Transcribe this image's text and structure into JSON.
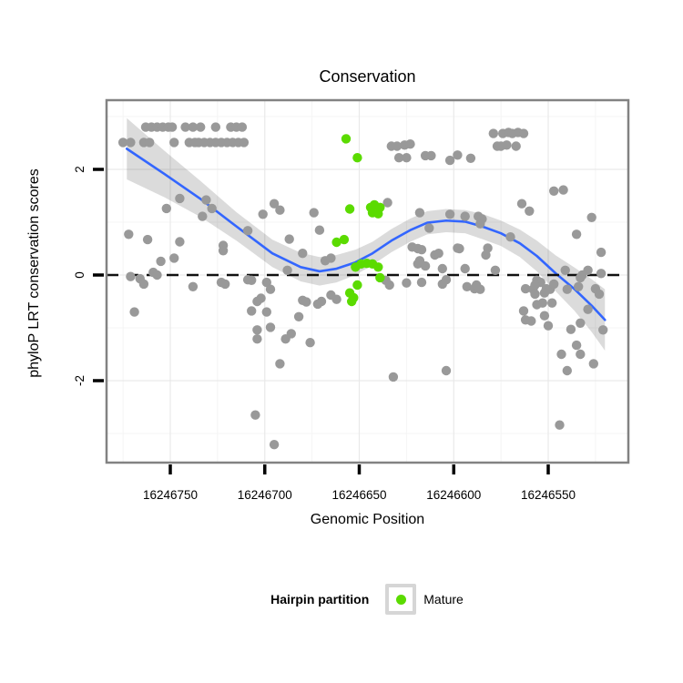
{
  "title": "Conservation",
  "legend": {
    "title": "Hairpin partition",
    "items": [
      {
        "label": "Mature",
        "color": "#5bdb00"
      }
    ]
  },
  "colors": {
    "gray_points": "#999999",
    "mature_points": "#5bdb00",
    "smooth_line": "#3366ff",
    "ci_band": "rgba(0,0,0,0.14)",
    "dashed_line": "#111111",
    "panel_border": "#828282",
    "grid_major": "#e9e9e9",
    "grid_minor": "#f4f4f4",
    "tick": "#000000"
  },
  "chart_data": {
    "type": "scatter",
    "title": "Conservation",
    "xlabel": "Genomic Position",
    "ylabel": "phyloP LRT conservation scores",
    "x_ticks": [
      16246750,
      16246700,
      16246650,
      16246600,
      16246550
    ],
    "y_ticks": [
      2,
      0,
      -2
    ],
    "x_descending": true,
    "xlim": [
      16246784,
      16246508
    ],
    "ylim": [
      -3.5,
      3.3
    ],
    "hline": 0,
    "grid": true,
    "legend_position": "bottom",
    "series": [
      {
        "name": "gray_points",
        "color": "#999999",
        "points": [
          [
            16246763,
            2.8
          ],
          [
            16246760,
            2.8
          ],
          [
            16246757,
            2.8
          ],
          [
            16246754,
            2.8
          ],
          [
            16246751,
            2.8
          ],
          [
            16246749,
            2.8
          ],
          [
            16246742,
            2.8
          ],
          [
            16246738,
            2.8
          ],
          [
            16246734,
            2.8
          ],
          [
            16246726,
            2.8
          ],
          [
            16246718,
            2.8
          ],
          [
            16246715,
            2.8
          ],
          [
            16246712,
            2.8
          ],
          [
            16246775,
            2.51
          ],
          [
            16246771,
            2.51
          ],
          [
            16246764,
            2.51
          ],
          [
            16246761,
            2.51
          ],
          [
            16246748,
            2.51
          ],
          [
            16246740,
            2.51
          ],
          [
            16246737,
            2.51
          ],
          [
            16246735,
            2.51
          ],
          [
            16246732,
            2.51
          ],
          [
            16246729,
            2.51
          ],
          [
            16246726,
            2.51
          ],
          [
            16246723,
            2.51
          ],
          [
            16246720,
            2.51
          ],
          [
            16246717,
            2.51
          ],
          [
            16246714,
            2.51
          ],
          [
            16246711,
            2.51
          ],
          [
            16246579,
            2.68
          ],
          [
            16246574,
            2.68
          ],
          [
            16246571,
            2.7
          ],
          [
            16246569,
            2.68
          ],
          [
            16246566,
            2.7
          ],
          [
            16246563,
            2.68
          ],
          [
            16246577,
            2.44
          ],
          [
            16246575,
            2.44
          ],
          [
            16246572,
            2.46
          ],
          [
            16246567,
            2.44
          ],
          [
            16246633,
            2.44
          ],
          [
            16246630,
            2.44
          ],
          [
            16246626,
            2.46
          ],
          [
            16246623,
            2.48
          ],
          [
            16246629,
            2.22
          ],
          [
            16246625,
            2.22
          ],
          [
            16246615,
            2.26
          ],
          [
            16246612,
            2.26
          ],
          [
            16246602,
            2.17
          ],
          [
            16246598,
            2.27
          ],
          [
            16246591,
            2.21
          ],
          [
            16246745,
            1.45
          ],
          [
            16246731,
            1.42
          ],
          [
            16246752,
            1.26
          ],
          [
            16246728,
            1.26
          ],
          [
            16246733,
            1.11
          ],
          [
            16246701,
            1.15
          ],
          [
            16246695,
            1.35
          ],
          [
            16246692,
            1.23
          ],
          [
            16246674,
            1.18
          ],
          [
            16246635,
            1.37
          ],
          [
            16246618,
            1.18
          ],
          [
            16246564,
            1.35
          ],
          [
            16246560,
            1.21
          ],
          [
            16246547,
            1.59
          ],
          [
            16246542,
            1.61
          ],
          [
            16246772,
            0.77
          ],
          [
            16246762,
            0.67
          ],
          [
            16246745,
            0.63
          ],
          [
            16246709,
            0.84
          ],
          [
            16246687,
            0.68
          ],
          [
            16246671,
            0.85
          ],
          [
            16246755,
            0.26
          ],
          [
            16246748,
            0.32
          ],
          [
            16246722,
            0.56
          ],
          [
            16246722,
            0.46
          ],
          [
            16246680,
            0.41
          ],
          [
            16246668,
            0.27
          ],
          [
            16246665,
            0.32
          ],
          [
            16246618,
            0.27
          ],
          [
            16246622,
            0.53
          ],
          [
            16246619,
            0.5
          ],
          [
            16246617,
            0.48
          ],
          [
            16246613,
            0.89
          ],
          [
            16246610,
            0.38
          ],
          [
            16246608,
            0.41
          ],
          [
            16246619,
            0.21
          ],
          [
            16246615,
            0.17
          ],
          [
            16246602,
            1.15
          ],
          [
            16246594,
            1.11
          ],
          [
            16246598,
            0.51
          ],
          [
            16246597,
            0.5
          ],
          [
            16246587,
            1.11
          ],
          [
            16246585,
            1.06
          ],
          [
            16246586,
            0.97
          ],
          [
            16246582,
            0.51
          ],
          [
            16246583,
            0.38
          ],
          [
            16246570,
            0.72
          ],
          [
            16246535,
            0.77
          ],
          [
            16246527,
            1.09
          ],
          [
            16246522,
            0.43
          ],
          [
            16246771,
            -0.03
          ],
          [
            16246766,
            -0.07
          ],
          [
            16246764,
            -0.17
          ],
          [
            16246759,
            0.05
          ],
          [
            16246757,
            0
          ],
          [
            16246738,
            -0.22
          ],
          [
            16246723,
            -0.14
          ],
          [
            16246721,
            -0.17
          ],
          [
            16246709,
            -0.09
          ],
          [
            16246707,
            -0.1
          ],
          [
            16246699,
            -0.14
          ],
          [
            16246697,
            -0.27
          ],
          [
            16246702,
            -0.44
          ],
          [
            16246688,
            0.09
          ],
          [
            16246606,
            0.12
          ],
          [
            16246604,
            -0.09
          ],
          [
            16246606,
            -0.17
          ],
          [
            16246617,
            -0.14
          ],
          [
            16246594,
            0.12
          ],
          [
            16246593,
            -0.22
          ],
          [
            16246589,
            -0.26
          ],
          [
            16246586,
            -0.27
          ],
          [
            16246578,
            0.09
          ],
          [
            16246556,
            -0.1
          ],
          [
            16246554,
            -0.14
          ],
          [
            16246551,
            -0.26
          ],
          [
            16246549,
            -0.27
          ],
          [
            16246562,
            -0.26
          ],
          [
            16246558,
            -0.27
          ],
          [
            16246541,
            0.09
          ],
          [
            16246529,
            0.09
          ],
          [
            16246522,
            0.03
          ],
          [
            16246534,
            -0.22
          ],
          [
            16246525,
            -0.26
          ],
          [
            16246540,
            -0.27
          ],
          [
            16246588,
            -0.19
          ],
          [
            16246557,
            -0.19
          ],
          [
            16246547,
            -0.17
          ],
          [
            16246533,
            -0.05
          ],
          [
            16246532,
            0
          ],
          [
            16246636,
            -0.1
          ],
          [
            16246634,
            -0.19
          ],
          [
            16246625,
            -0.15
          ],
          [
            16246665,
            -0.38
          ],
          [
            16246662,
            -0.46
          ],
          [
            16246680,
            -0.48
          ],
          [
            16246678,
            -0.51
          ],
          [
            16246672,
            -0.55
          ],
          [
            16246670,
            -0.5
          ],
          [
            16246682,
            -0.79
          ],
          [
            16246704,
            -0.5
          ],
          [
            16246707,
            -0.68
          ],
          [
            16246699,
            -0.7
          ],
          [
            16246769,
            -0.7
          ],
          [
            16246557,
            -0.36
          ],
          [
            16246552,
            -0.34
          ],
          [
            16246556,
            -0.56
          ],
          [
            16246553,
            -0.53
          ],
          [
            16246548,
            -0.53
          ],
          [
            16246563,
            -0.68
          ],
          [
            16246562,
            -0.85
          ],
          [
            16246559,
            -0.87
          ],
          [
            16246552,
            -0.77
          ],
          [
            16246529,
            -0.65
          ],
          [
            16246523,
            -0.36
          ],
          [
            16246533,
            -0.91
          ],
          [
            16246550,
            -0.96
          ],
          [
            16246704,
            -1.04
          ],
          [
            16246697,
            -0.99
          ],
          [
            16246704,
            -1.21
          ],
          [
            16246689,
            -1.21
          ],
          [
            16246686,
            -1.11
          ],
          [
            16246676,
            -1.28
          ],
          [
            16246692,
            -1.68
          ],
          [
            16246538,
            -1.03
          ],
          [
            16246521,
            -1.04
          ],
          [
            16246535,
            -1.33
          ],
          [
            16246533,
            -1.5
          ],
          [
            16246543,
            -1.5
          ],
          [
            16246526,
            -1.68
          ],
          [
            16246540,
            -1.81
          ],
          [
            16246632,
            -1.93
          ],
          [
            16246604,
            -1.81
          ],
          [
            16246705,
            -2.65
          ],
          [
            16246544,
            -2.84
          ],
          [
            16246695,
            -3.21
          ]
        ]
      },
      {
        "name": "Mature",
        "color": "#5bdb00",
        "points": [
          [
            16246657,
            2.58
          ],
          [
            16246651,
            2.22
          ],
          [
            16246655,
            1.25
          ],
          [
            16246644,
            1.28
          ],
          [
            16246642,
            1.33
          ],
          [
            16246639,
            1.28
          ],
          [
            16246643,
            1.18
          ],
          [
            16246640,
            1.16
          ],
          [
            16246662,
            0.62
          ],
          [
            16246658,
            0.67
          ],
          [
            16246652,
            0.15
          ],
          [
            16246649,
            0.21
          ],
          [
            16246646,
            0.22
          ],
          [
            16246643,
            0.21
          ],
          [
            16246640,
            0.15
          ],
          [
            16246651,
            -0.19
          ],
          [
            16246639,
            -0.05
          ],
          [
            16246655,
            -0.34
          ],
          [
            16246653,
            -0.43
          ],
          [
            16246654,
            -0.5
          ]
        ]
      }
    ],
    "smooth": {
      "name": "loess_fit",
      "color": "#3366ff",
      "x": [
        16246773,
        16246753,
        16246734,
        16246715,
        16246696,
        16246681,
        16246671,
        16246662,
        16246652,
        16246643,
        16246633,
        16246623,
        16246614,
        16246604,
        16246594,
        16246585,
        16246575,
        16246565,
        16246556,
        16246546,
        16246536,
        16246527,
        16246520
      ],
      "y": [
        2.39,
        1.91,
        1.44,
        0.92,
        0.41,
        0.15,
        0.07,
        0.12,
        0.24,
        0.41,
        0.65,
        0.85,
        0.99,
        1.03,
        1.01,
        0.92,
        0.79,
        0.6,
        0.36,
        0.03,
        -0.27,
        -0.58,
        -0.85
      ],
      "ci": [
        0.58,
        0.44,
        0.34,
        0.27,
        0.26,
        0.27,
        0.27,
        0.26,
        0.24,
        0.22,
        0.22,
        0.22,
        0.22,
        0.22,
        0.22,
        0.24,
        0.24,
        0.26,
        0.29,
        0.34,
        0.41,
        0.5,
        0.58
      ]
    }
  }
}
